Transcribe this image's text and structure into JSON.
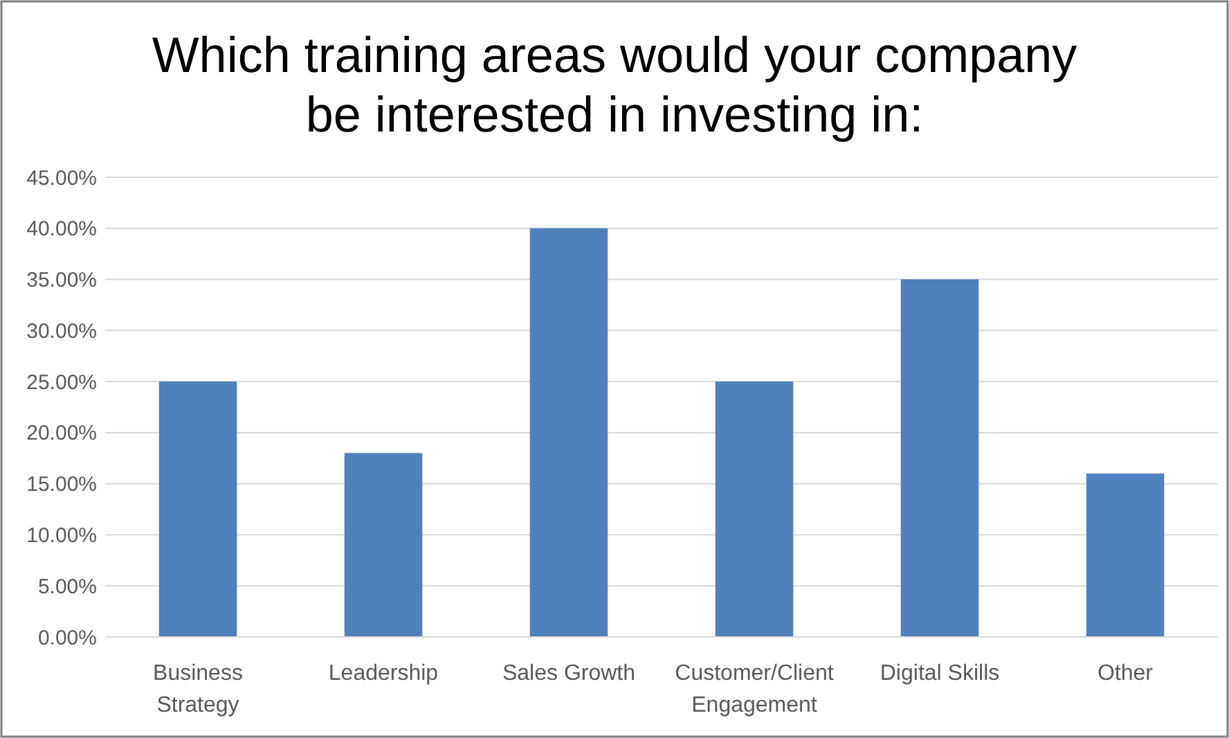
{
  "chart_data": {
    "type": "bar",
    "title": "Which training areas would your company be interested in investing in:",
    "categories": [
      "Business Strategy",
      "Leadership",
      "Sales Growth",
      "Customer/Client Engagement",
      "Digital Skills",
      "Other"
    ],
    "values": [
      25,
      18,
      40,
      25,
      35,
      16
    ],
    "color": "#4f81bd",
    "ylim": [
      0,
      45
    ],
    "yticks": [
      {
        "value": 0,
        "label": "0.00%"
      },
      {
        "value": 5,
        "label": "5.00%"
      },
      {
        "value": 10,
        "label": "10.00%"
      },
      {
        "value": 15,
        "label": "15.00%"
      },
      {
        "value": 20,
        "label": "20.00%"
      },
      {
        "value": 25,
        "label": "25.00%"
      },
      {
        "value": 30,
        "label": "30.00%"
      },
      {
        "value": 35,
        "label": "35.00%"
      },
      {
        "value": 40,
        "label": "40.00%"
      },
      {
        "value": 45,
        "label": "45.00%"
      }
    ],
    "grid": true
  }
}
